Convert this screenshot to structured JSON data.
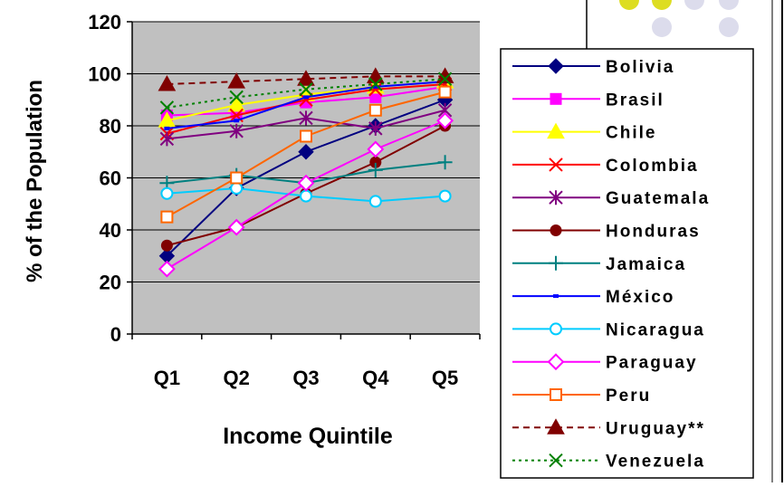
{
  "chart_data": {
    "type": "line",
    "title": "",
    "xlabel": "Income Quintile",
    "ylabel": "% of the Population",
    "categories": [
      "Q1",
      "Q2",
      "Q3",
      "Q4",
      "Q5"
    ],
    "ylim": [
      0,
      120
    ],
    "yticks": [
      0,
      20,
      40,
      60,
      80,
      100,
      120
    ],
    "grid": true,
    "legend_position": "right",
    "series": [
      {
        "name": "Bolivia",
        "values": [
          30,
          56,
          70,
          80,
          90
        ],
        "color": "#000080",
        "marker": "diamond",
        "dash": "solid"
      },
      {
        "name": "Brasil",
        "values": [
          84,
          85,
          89,
          91,
          95
        ],
        "color": "#FF00FF",
        "marker": "square",
        "dash": "solid"
      },
      {
        "name": "Chile",
        "values": [
          82,
          88,
          92,
          95,
          97
        ],
        "color": "#FFFF00",
        "marker": "triangle",
        "dash": "solid"
      },
      {
        "name": "Colombia",
        "values": [
          77,
          84,
          90,
          94,
          96
        ],
        "color": "#FF0000",
        "marker": "x",
        "dash": "solid"
      },
      {
        "name": "Guatemala",
        "values": [
          75,
          78,
          83,
          79,
          86
        ],
        "color": "#800080",
        "marker": "star",
        "dash": "solid"
      },
      {
        "name": "Honduras",
        "values": [
          34,
          41,
          54,
          66,
          80
        ],
        "color": "#800000",
        "marker": "circle",
        "dash": "solid"
      },
      {
        "name": "Jamaica",
        "values": [
          58,
          61,
          58,
          63,
          66
        ],
        "color": "#008080",
        "marker": "plus",
        "dash": "solid"
      },
      {
        "name": "México",
        "values": [
          79,
          82,
          91,
          95,
          97
        ],
        "color": "#0000FF",
        "marker": "dash",
        "dash": "solid"
      },
      {
        "name": "Nicaragua",
        "values": [
          54,
          56,
          53,
          51,
          53
        ],
        "color": "#00CCFF",
        "marker": "circle-open",
        "dash": "solid"
      },
      {
        "name": "Paraguay",
        "values": [
          25,
          41,
          58,
          71,
          82
        ],
        "color": "#FF00FF",
        "marker": "diamond-open",
        "dash": "solid"
      },
      {
        "name": "Peru",
        "values": [
          45,
          60,
          76,
          86,
          93
        ],
        "color": "#FF6600",
        "marker": "square-open",
        "dash": "solid"
      },
      {
        "name": "Uruguay**",
        "values": [
          96,
          97,
          98,
          99,
          99
        ],
        "color": "#800000",
        "marker": "triangle",
        "dash": "dash"
      },
      {
        "name": "Venezuela",
        "values": [
          87,
          91,
          94,
          96,
          98
        ],
        "color": "#008000",
        "marker": "x",
        "dash": "dot"
      }
    ]
  },
  "decoration": {
    "dot_colors": [
      "#DDDD22",
      "#DDDD22",
      "#DCDCEC",
      "#DCDCEC"
    ]
  }
}
